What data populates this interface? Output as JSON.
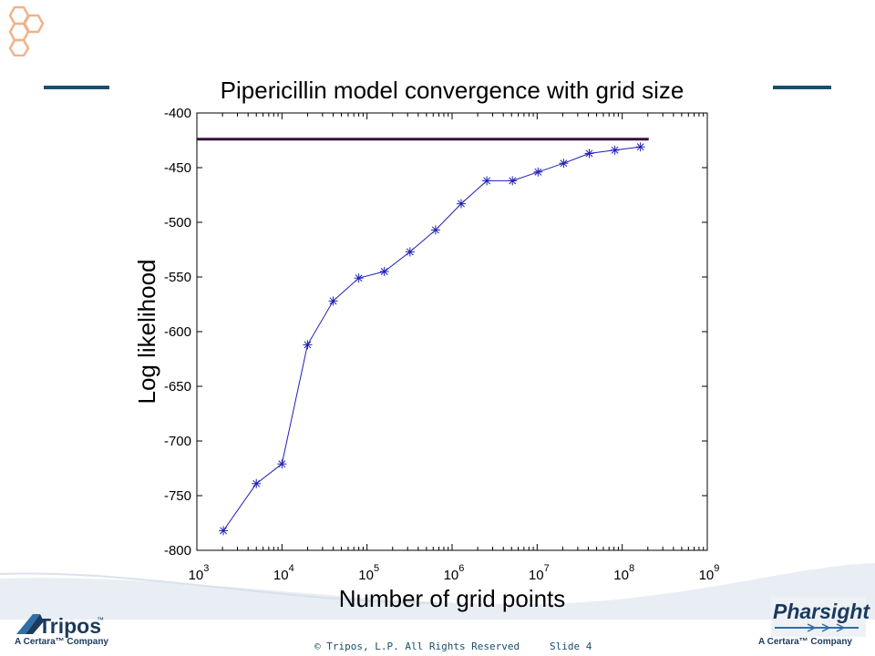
{
  "slide": {
    "copyright": "© Tripos, L.P. All Rights Reserved",
    "slide_number": "Slide 4",
    "colors": {
      "accent": "#1b4e6b",
      "hex": "#f0b38a",
      "swoosh": "#e8eef4"
    }
  },
  "logos": {
    "tripos": {
      "name": "Tripos",
      "tm": "™",
      "tagline": "A Certara™ Company"
    },
    "pharsight": {
      "name": "Pharsight",
      "tagline": "A Certara™ Company"
    }
  },
  "chart_data": {
    "type": "line",
    "title": "Pipericillin model convergence with grid size",
    "xlabel": "Number of grid points",
    "ylabel": "Log likelihood",
    "xscale": "log",
    "xlim": [
      1000,
      1000000000
    ],
    "ylim": [
      -800,
      -400
    ],
    "x_ticks": [
      {
        "base": "10",
        "exp": "3",
        "value": 1000
      },
      {
        "base": "10",
        "exp": "4",
        "value": 10000
      },
      {
        "base": "10",
        "exp": "5",
        "value": 100000
      },
      {
        "base": "10",
        "exp": "6",
        "value": 1000000
      },
      {
        "base": "10",
        "exp": "7",
        "value": 10000000
      },
      {
        "base": "10",
        "exp": "8",
        "value": 100000000
      },
      {
        "base": "10",
        "exp": "9",
        "value": 1000000000
      }
    ],
    "y_ticks": [
      "-400",
      "-450",
      "-500",
      "-550",
      "-600",
      "-650",
      "-700",
      "-750",
      "-800"
    ],
    "grid": false,
    "series": [
      {
        "marker": "asterisk",
        "color": "#1f1fb4",
        "x": [
          2048,
          5000,
          10000,
          20000,
          40000,
          80000,
          160000,
          320000,
          640000,
          1280000,
          2560000,
          5120000,
          10240000,
          20480000,
          40960000,
          81920000,
          163840000
        ],
        "y": [
          -782,
          -739,
          -721,
          -612,
          -572,
          -551,
          -545,
          -527,
          -507,
          -483,
          -462,
          -462,
          -454,
          -446,
          -437,
          -434,
          -431
        ]
      }
    ],
    "reference_line": {
      "y": -424,
      "x_start": 1000,
      "x_end": 204800000,
      "color": "#3a0f3f"
    }
  }
}
